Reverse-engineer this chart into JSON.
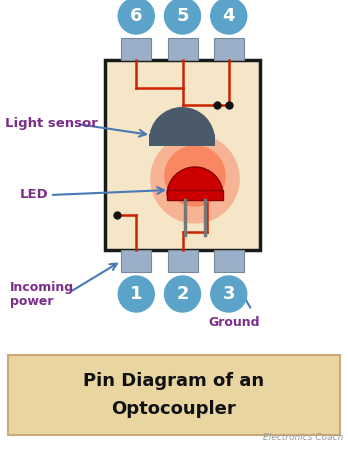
{
  "bg_color": "#ffffff",
  "chip_bg": "#f5e6c8",
  "chip_border": "#1a1a1a",
  "pin_color": "#9bb0c8",
  "pin_circle_color": "#5ba3c9",
  "pin_circle_text": "#ffffff",
  "led_red": "#cc0000",
  "led_legs": "#777777",
  "sensor_color": "#4a5a6a",
  "wire_color": "#cc2200",
  "dot_color": "#111111",
  "arrow_color": "#4a7ab5",
  "label_color": "#7b2d8b",
  "title_bg": "#e8d5a0",
  "title_color": "#111111",
  "watermark": "Electronics Coach",
  "pin_numbers_top": [
    "6",
    "5",
    "4"
  ],
  "pin_numbers_bot": [
    "1",
    "2",
    "3"
  ]
}
